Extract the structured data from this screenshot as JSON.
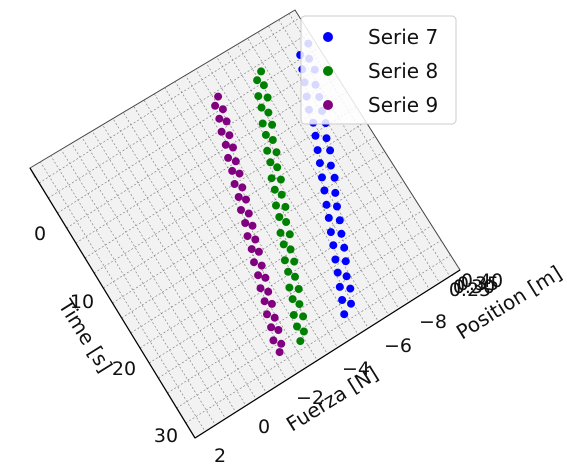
{
  "chart_data": {
    "type": "scatter",
    "projection": "3d",
    "title": "",
    "xlabel": "Time [s]",
    "ylabel": "Fuerza [N]",
    "zlabel": "Position [m]",
    "x_ticks": [
      "0",
      "10",
      "20",
      "30"
    ],
    "y_ticks": [
      "2",
      "0",
      "−2",
      "−4",
      "−6",
      "−8"
    ],
    "z_ticks": [
      "0.25",
      "0.30",
      "0.35",
      "0.40"
    ],
    "xlim": [
      -5,
      31
    ],
    "ylim": [
      3,
      -10
    ],
    "zlim": [
      0.2,
      0.45
    ],
    "grid": true,
    "legend_position": "top-right",
    "series": [
      {
        "name": "Serie 7",
        "color": "#0000ff",
        "points": [
          [
            0.5,
            -9.2,
            0.25
          ],
          [
            1.2,
            -8.6,
            0.26
          ],
          [
            2.0,
            -8.9,
            0.25
          ],
          [
            2.8,
            -8.3,
            0.27
          ],
          [
            3.5,
            -8.8,
            0.26
          ],
          [
            4.2,
            -8.1,
            0.27
          ],
          [
            5.0,
            -8.5,
            0.26
          ],
          [
            5.8,
            -7.8,
            0.28
          ],
          [
            6.5,
            -8.3,
            0.27
          ],
          [
            7.2,
            -7.6,
            0.28
          ],
          [
            8.0,
            -8.1,
            0.27
          ],
          [
            8.8,
            -7.4,
            0.29
          ],
          [
            9.5,
            -7.9,
            0.28
          ],
          [
            10.2,
            -7.2,
            0.29
          ],
          [
            11.0,
            -7.6,
            0.28
          ],
          [
            11.8,
            -6.9,
            0.3
          ],
          [
            12.5,
            -7.4,
            0.29
          ],
          [
            13.2,
            -6.7,
            0.3
          ],
          [
            14.0,
            -7.1,
            0.29
          ],
          [
            14.8,
            -6.4,
            0.31
          ],
          [
            15.5,
            -6.9,
            0.3
          ],
          [
            16.2,
            -6.2,
            0.31
          ],
          [
            17.0,
            -6.6,
            0.3
          ],
          [
            17.8,
            -5.9,
            0.32
          ],
          [
            18.5,
            -6.3,
            0.31
          ],
          [
            19.2,
            -5.7,
            0.32
          ],
          [
            20.0,
            -6.1,
            0.31
          ],
          [
            20.8,
            -5.4,
            0.33
          ],
          [
            21.5,
            -5.8,
            0.32
          ],
          [
            22.2,
            -5.2,
            0.33
          ],
          [
            23.0,
            -5.6,
            0.32
          ],
          [
            23.8,
            -4.9,
            0.34
          ],
          [
            24.5,
            -5.3,
            0.33
          ],
          [
            25.2,
            -4.7,
            0.34
          ],
          [
            26.0,
            -5.0,
            0.33
          ],
          [
            26.8,
            -4.4,
            0.35
          ],
          [
            27.5,
            -4.8,
            0.34
          ],
          [
            28.2,
            -4.2,
            0.35
          ],
          [
            29.0,
            -4.5,
            0.34
          ],
          [
            29.8,
            -3.9,
            0.36
          ]
        ]
      },
      {
        "name": "Serie 8",
        "color": "#008000",
        "points": [
          [
            0.5,
            -6.8,
            0.27
          ],
          [
            1.2,
            -6.4,
            0.28
          ],
          [
            2.0,
            -6.6,
            0.27
          ],
          [
            2.8,
            -6.1,
            0.28
          ],
          [
            3.5,
            -6.4,
            0.28
          ],
          [
            4.2,
            -5.9,
            0.29
          ],
          [
            5.0,
            -6.1,
            0.28
          ],
          [
            5.8,
            -5.6,
            0.29
          ],
          [
            6.5,
            -5.9,
            0.29
          ],
          [
            7.2,
            -5.4,
            0.3
          ],
          [
            8.0,
            -5.6,
            0.29
          ],
          [
            8.8,
            -5.1,
            0.3
          ],
          [
            9.5,
            -5.4,
            0.3
          ],
          [
            10.2,
            -4.9,
            0.31
          ],
          [
            11.0,
            -5.1,
            0.3
          ],
          [
            11.8,
            -4.6,
            0.31
          ],
          [
            12.5,
            -4.9,
            0.31
          ],
          [
            13.2,
            -4.4,
            0.32
          ],
          [
            14.0,
            -4.6,
            0.31
          ],
          [
            14.8,
            -4.1,
            0.32
          ],
          [
            15.5,
            -4.4,
            0.32
          ],
          [
            16.2,
            -3.9,
            0.33
          ],
          [
            17.0,
            -4.1,
            0.32
          ],
          [
            17.8,
            -3.6,
            0.33
          ],
          [
            18.5,
            -3.9,
            0.33
          ],
          [
            19.2,
            -3.4,
            0.34
          ],
          [
            20.0,
            -3.6,
            0.33
          ],
          [
            20.8,
            -3.1,
            0.34
          ],
          [
            21.5,
            -3.4,
            0.34
          ],
          [
            22.2,
            -2.9,
            0.35
          ],
          [
            23.0,
            -3.1,
            0.34
          ],
          [
            23.8,
            -2.6,
            0.35
          ],
          [
            24.5,
            -2.9,
            0.35
          ],
          [
            25.2,
            -2.4,
            0.36
          ],
          [
            26.0,
            -2.6,
            0.35
          ],
          [
            26.8,
            -2.1,
            0.36
          ],
          [
            27.5,
            -2.4,
            0.36
          ],
          [
            28.2,
            -1.9,
            0.37
          ],
          [
            29.0,
            -2.1,
            0.36
          ],
          [
            29.8,
            -1.7,
            0.37
          ]
        ]
      },
      {
        "name": "Serie 9",
        "color": "#800080",
        "points": [
          [
            0.5,
            -4.6,
            0.29
          ],
          [
            1.2,
            -4.3,
            0.29
          ],
          [
            2.0,
            -4.5,
            0.29
          ],
          [
            2.8,
            -4.1,
            0.3
          ],
          [
            3.5,
            -4.3,
            0.3
          ],
          [
            4.2,
            -3.9,
            0.3
          ],
          [
            5.0,
            -4.1,
            0.3
          ],
          [
            5.8,
            -3.7,
            0.31
          ],
          [
            6.5,
            -3.9,
            0.31
          ],
          [
            7.2,
            -3.5,
            0.31
          ],
          [
            8.0,
            -3.7,
            0.31
          ],
          [
            8.8,
            -3.3,
            0.32
          ],
          [
            9.5,
            -3.5,
            0.32
          ],
          [
            10.2,
            -3.1,
            0.32
          ],
          [
            11.0,
            -3.3,
            0.32
          ],
          [
            11.8,
            -2.9,
            0.33
          ],
          [
            12.5,
            -3.1,
            0.33
          ],
          [
            13.2,
            -2.7,
            0.33
          ],
          [
            14.0,
            -2.9,
            0.33
          ],
          [
            14.8,
            -2.5,
            0.34
          ],
          [
            15.5,
            -2.7,
            0.34
          ],
          [
            16.2,
            -2.3,
            0.34
          ],
          [
            17.0,
            -2.5,
            0.34
          ],
          [
            17.8,
            -2.1,
            0.35
          ],
          [
            18.5,
            -2.3,
            0.35
          ],
          [
            19.2,
            -1.9,
            0.35
          ],
          [
            20.0,
            -2.1,
            0.35
          ],
          [
            20.8,
            -1.7,
            0.36
          ],
          [
            21.5,
            -1.9,
            0.36
          ],
          [
            22.2,
            -1.5,
            0.36
          ],
          [
            23.0,
            -1.7,
            0.36
          ],
          [
            23.8,
            -1.3,
            0.37
          ],
          [
            24.5,
            -1.5,
            0.37
          ],
          [
            25.2,
            -1.1,
            0.37
          ],
          [
            26.0,
            -1.3,
            0.37
          ],
          [
            26.8,
            -0.9,
            0.38
          ],
          [
            27.5,
            -1.1,
            0.38
          ],
          [
            28.2,
            -0.7,
            0.38
          ],
          [
            29.0,
            -0.9,
            0.38
          ],
          [
            29.8,
            -0.6,
            0.39
          ]
        ]
      }
    ]
  }
}
